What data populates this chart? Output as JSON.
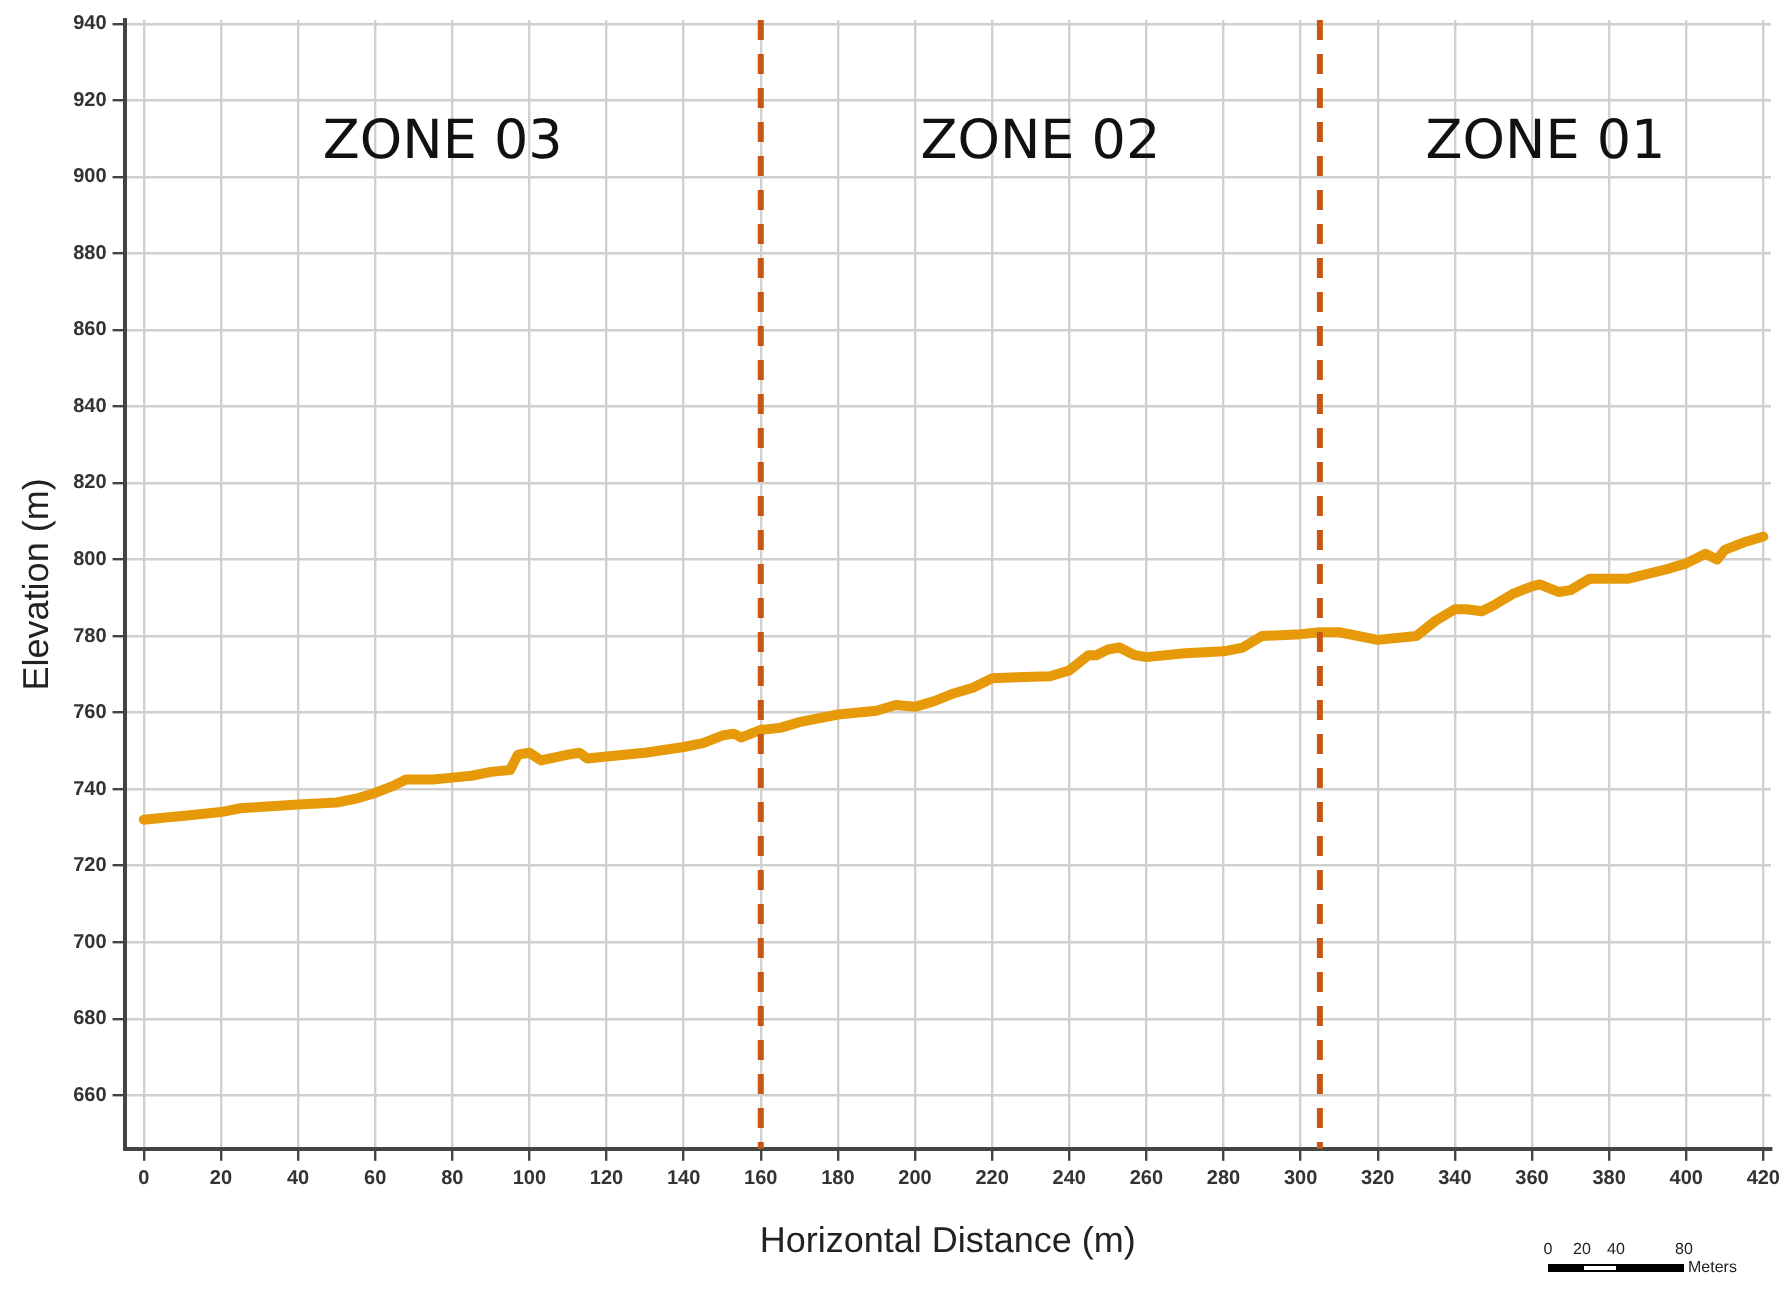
{
  "chart_data": {
    "type": "line",
    "xlabel": "Horizontal Distance (m)",
    "ylabel": "Elevation (m)",
    "xlim": [
      -5,
      422
    ],
    "ylim": [
      646,
      941
    ],
    "xticks": [
      0,
      20,
      40,
      60,
      80,
      100,
      120,
      140,
      160,
      180,
      200,
      220,
      240,
      260,
      280,
      300,
      320,
      340,
      360,
      380,
      400,
      420
    ],
    "yticks": [
      660,
      680,
      700,
      720,
      740,
      760,
      780,
      800,
      820,
      840,
      860,
      880,
      900,
      920,
      940
    ],
    "grid": true,
    "legend": false,
    "marker": "none",
    "line_style": "solid",
    "series": [
      {
        "color": "#e69a0a",
        "x": [
          0,
          5,
          10,
          20,
          25,
          30,
          40,
          50,
          55,
          60,
          65,
          68,
          75,
          80,
          85,
          90,
          95,
          97,
          100,
          103,
          110,
          113,
          115,
          120,
          130,
          140,
          145,
          150,
          153,
          155,
          160,
          165,
          170,
          180,
          190,
          195,
          200,
          205,
          210,
          215,
          220,
          235,
          240,
          245,
          247,
          250,
          253,
          257,
          260,
          270,
          280,
          285,
          290,
          300,
          305,
          310,
          320,
          330,
          335,
          340,
          343,
          347,
          350,
          355,
          360,
          362,
          367,
          370,
          375,
          385,
          395,
          400,
          405,
          408,
          410,
          415,
          420
        ],
        "values": [
          732,
          732.5,
          733,
          734,
          735,
          735.3,
          736,
          736.5,
          737.5,
          739,
          741,
          742.5,
          742.5,
          743,
          743.5,
          744.5,
          745,
          749,
          749.5,
          747.5,
          749,
          749.5,
          748,
          748.5,
          749.5,
          751,
          752,
          754,
          754.5,
          753.5,
          755.5,
          756,
          757.5,
          759.5,
          760.5,
          762,
          761.5,
          763,
          765,
          766.5,
          769,
          769.5,
          771,
          775,
          775,
          776.5,
          777,
          775,
          774.5,
          775.5,
          776,
          777,
          780,
          780.5,
          781,
          781,
          779,
          780,
          784,
          787,
          787,
          786.5,
          788,
          791,
          793,
          793.5,
          791.5,
          792,
          795,
          795,
          797.5,
          799,
          801.5,
          800,
          802.5,
          804.5,
          806
        ]
      }
    ],
    "ref_lines": [
      {
        "axis": "x",
        "value": 160,
        "color": "#c65911",
        "line_style": "dashed"
      },
      {
        "axis": "x",
        "value": 305,
        "color": "#c65911",
        "line_style": "dashed"
      }
    ],
    "annotations": [
      "ZONE 03",
      "ZONE 02",
      "ZONE 01",
      "0",
      "20",
      "40",
      "80",
      "Meters"
    ]
  }
}
